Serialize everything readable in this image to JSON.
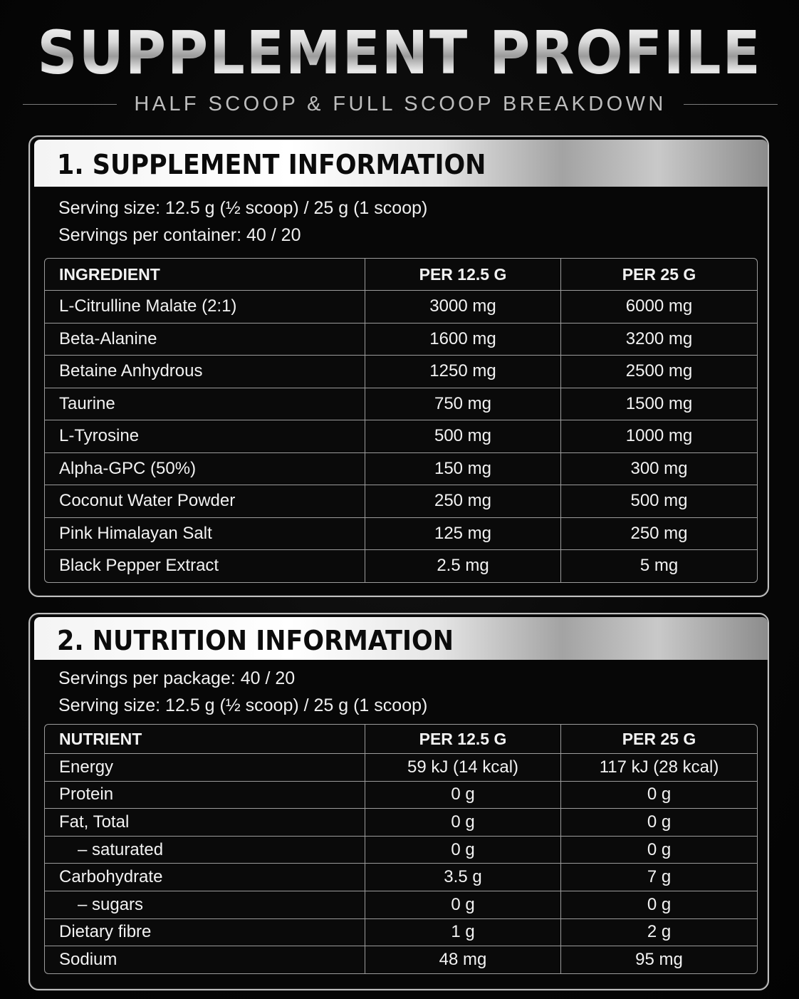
{
  "header": {
    "title": "SUPPLEMENT PROFILE",
    "subtitle": "HALF SCOOP & FULL SCOOP BREAKDOWN"
  },
  "supplement_info": {
    "heading": "1. SUPPLEMENT INFORMATION",
    "serving_size": "Serving size: 12.5 g (½ scoop) / 25 g (1 scoop)",
    "servings_per_container": "Servings per container: 40 / 20",
    "columns": [
      "INGREDIENT",
      "PER 12.5 G",
      "PER 25 G"
    ],
    "rows": [
      [
        "L-Citrulline Malate (2:1)",
        "3000 mg",
        "6000 mg"
      ],
      [
        "Beta-Alanine",
        "1600 mg",
        "3200 mg"
      ],
      [
        "Betaine Anhydrous",
        "1250 mg",
        "2500 mg"
      ],
      [
        "Taurine",
        "750 mg",
        "1500 mg"
      ],
      [
        "L-Tyrosine",
        "500 mg",
        "1000 mg"
      ],
      [
        "Alpha-GPC (50%)",
        "150 mg",
        "300 mg"
      ],
      [
        "Coconut Water Powder",
        "250 mg",
        "500 mg"
      ],
      [
        "Pink Himalayan Salt",
        "125 mg",
        "250 mg"
      ],
      [
        "Black Pepper Extract",
        "2.5 mg",
        "5 mg"
      ]
    ]
  },
  "nutrition_info": {
    "heading": "2. NUTRITION INFORMATION",
    "servings_per_package": "Servings per package: 40 / 20",
    "serving_size": "Serving size: 12.5 g (½ scoop) / 25 g (1 scoop)",
    "columns": [
      "NUTRIENT",
      "PER 12.5 G",
      "PER 25 G"
    ],
    "rows": [
      [
        "Energy",
        "59 kJ (14 kcal)",
        "117 kJ (28 kcal)"
      ],
      [
        "Protein",
        "0 g",
        "0 g"
      ],
      [
        "Fat, Total",
        "0 g",
        "0 g"
      ],
      [
        "– saturated",
        "0 g",
        "0 g"
      ],
      [
        "Carbohydrate",
        "3.5 g",
        "7 g"
      ],
      [
        "– sugars",
        "0 g",
        "0 g"
      ],
      [
        "Dietary fibre",
        "1 g",
        "2 g"
      ],
      [
        "Sodium",
        "48 mg",
        "95 mg"
      ]
    ]
  }
}
